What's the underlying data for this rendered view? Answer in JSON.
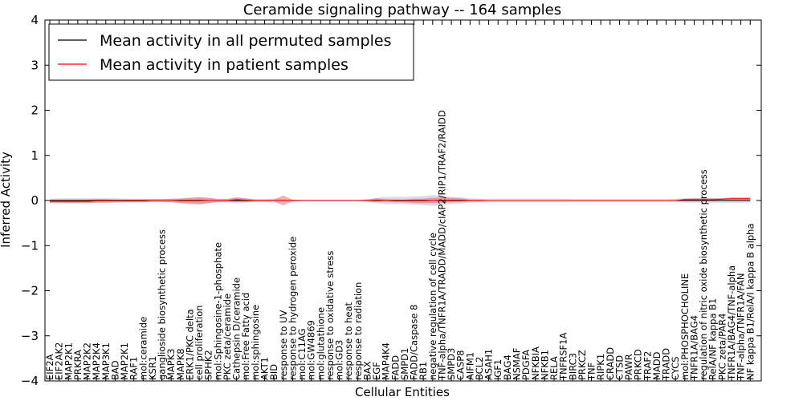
{
  "chart_data": {
    "type": "line",
    "title": "Ceramide signaling pathway -- 164 samples",
    "xlabel": "Cellular Entities",
    "ylabel": "Inferred Activity",
    "ylim": [
      -4,
      4
    ],
    "yticks": [
      -4,
      -3,
      -2,
      -1,
      0,
      1,
      2,
      3,
      4
    ],
    "ytick_labels": [
      "−4",
      "−3",
      "−2",
      "−1",
      "0",
      "1",
      "2",
      "3",
      "4"
    ],
    "grid": false,
    "legend_position": "top-left",
    "categories": [
      "EIF2A",
      "EIF2AK2",
      "MAP2K1",
      "PRKRA",
      "MAP2K2",
      "MAP2K4",
      "MAP3K1",
      "BAD",
      "MAP2K1",
      "RAF1",
      "mol:ceramide",
      "KSR1",
      "ganglioside biosynthetic process",
      "MAPK3",
      "MAPK8",
      "ERK1/PKC delta",
      "cell proliferation",
      "SPHK2",
      "mol:Sphingosine-1-phosphate",
      "PKC zeta/ceramide",
      "Cathepsin D/ceramide",
      "mol:Free Fatty acid",
      "mol:sphingosine",
      "AKT1",
      "BID",
      "response to UV",
      "response to hydrogen peroxide",
      "mol:C11AG",
      "mol:GW4869",
      "mol:glutathione",
      "response to oxidative stress",
      "mol:GD3",
      "response to heat",
      "response to radiation",
      "BAX",
      "EGF",
      "MAP4K4",
      "FADD",
      "SMPD1",
      "FADD/Caspase 8",
      "RB1",
      "negative regulation of cell cycle",
      "TNF-alpha/TNFR1A/TRADD/MADD/cIAP2/RIP1/TRAF2/RAIDD",
      "SMPD3",
      "CASP8",
      "AIFM1",
      "BCL2",
      "ASAH1",
      "IGF1",
      "BAG4",
      "NSMAF",
      "PDGFA",
      "NFKBIA",
      "NFKB1",
      "RELA",
      "TNFRSF1A",
      "BIRC3",
      "PRKCZ",
      "TNF",
      "RIPK1",
      "CRADD",
      "CTSD",
      "PAWR",
      "PRKCD",
      "TRAF2",
      "MADD",
      "TRADD",
      "CYCS",
      "mol:PHOSPHOCHOLINE",
      "TNFR1A/BAG4",
      "regulation of nitric oxide biosynthetic process",
      "RelA/NF kappa B1",
      "PKC zeta/PAR4",
      "TNFR1A/BAG4/TNF-alpha",
      "TNF-alpha/TNFR1A/FAN",
      "NF kappa B1/RelA/I kappa B alpha"
    ],
    "series": [
      {
        "name": "Mean activity in all permuted samples",
        "color": "#000000",
        "values": [
          0,
          0,
          0,
          0,
          0,
          0,
          0,
          0,
          0,
          0,
          0,
          0,
          0,
          0,
          0,
          0,
          0,
          0,
          0,
          0,
          0,
          0,
          0,
          0,
          0,
          0,
          0,
          0,
          0,
          0,
          0,
          0,
          0,
          0,
          0,
          0,
          0,
          0,
          0,
          0,
          0,
          0,
          0,
          0,
          0,
          0,
          0,
          0,
          0,
          0,
          0,
          0,
          0,
          0,
          0,
          0,
          0,
          0,
          0,
          0,
          0,
          0,
          0,
          0,
          0,
          0,
          0,
          0,
          0,
          0,
          0,
          0,
          0,
          0,
          0,
          0
        ],
        "spread": [
          0.04,
          0.05,
          0.05,
          0.05,
          0.05,
          0.05,
          0.05,
          0.05,
          0.04,
          0.04,
          0.04,
          0.03,
          0.03,
          0.04,
          0.05,
          0.06,
          0.07,
          0.06,
          0.04,
          0.04,
          0.06,
          0.05,
          0.03,
          0.03,
          0.05,
          0.03,
          0.02,
          0.02,
          0.02,
          0.02,
          0.02,
          0.02,
          0.02,
          0.02,
          0.03,
          0.06,
          0.08,
          0.08,
          0.08,
          0.09,
          0.1,
          0.12,
          0.1,
          0.08,
          0.07,
          0.05,
          0.04,
          0.04,
          0.04,
          0.04,
          0.04,
          0.04,
          0.04,
          0.04,
          0.04,
          0.04,
          0.03,
          0.03,
          0.03,
          0.03,
          0.03,
          0.03,
          0.03,
          0.03,
          0.03,
          0.03,
          0.03,
          0.04,
          0.05,
          0.05,
          0.05,
          0.05,
          0.05,
          0.05,
          0.05,
          0.05
        ]
      },
      {
        "name": "Mean activity in patient samples",
        "color": "#ff0000",
        "values": [
          -0.02,
          -0.02,
          -0.02,
          -0.02,
          -0.02,
          -0.01,
          -0.01,
          -0.01,
          -0.01,
          -0.01,
          -0.01,
          0,
          0,
          0,
          -0.01,
          -0.01,
          -0.01,
          0,
          0,
          0,
          0.02,
          0.01,
          0,
          0,
          0,
          0,
          0,
          0,
          0,
          0,
          0,
          0,
          0,
          0,
          0,
          0.01,
          0,
          -0.01,
          -0.01,
          -0.01,
          -0.01,
          0,
          0.01,
          0.01,
          0.01,
          0,
          0,
          0,
          0,
          0,
          0,
          0,
          0,
          0,
          0,
          0,
          0,
          0,
          0,
          0,
          0,
          0,
          0,
          0,
          0,
          0,
          0,
          0,
          0.02,
          0.02,
          0.02,
          0.02,
          0.03,
          0.04,
          0.04,
          0.04
        ],
        "spread": [
          0.04,
          0.04,
          0.04,
          0.04,
          0.04,
          0.04,
          0.04,
          0.03,
          0.03,
          0.03,
          0.03,
          0.03,
          0.03,
          0.04,
          0.05,
          0.07,
          0.08,
          0.06,
          0.03,
          0.03,
          0.05,
          0.04,
          0.02,
          0.02,
          0.02,
          0.11,
          0.02,
          0.01,
          0.01,
          0.01,
          0.01,
          0.01,
          0.01,
          0.01,
          0.02,
          0.04,
          0.03,
          0.03,
          0.03,
          0.05,
          0.05,
          0.06,
          0.06,
          0.05,
          0.04,
          0.02,
          0.02,
          0.01,
          0.01,
          0.01,
          0.01,
          0.01,
          0.01,
          0.01,
          0.01,
          0.01,
          0.01,
          0.01,
          0.01,
          0.01,
          0.01,
          0.01,
          0.01,
          0.01,
          0.01,
          0.01,
          0.01,
          0.01,
          0.02,
          0.03,
          0.03,
          0.03,
          0.02,
          0.03,
          0.03,
          0.03
        ]
      }
    ]
  }
}
